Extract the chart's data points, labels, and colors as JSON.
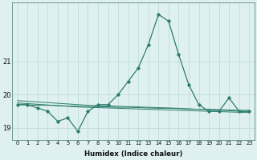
{
  "x": [
    0,
    1,
    2,
    3,
    4,
    5,
    6,
    7,
    8,
    9,
    10,
    11,
    12,
    13,
    14,
    15,
    16,
    17,
    18,
    19,
    20,
    21,
    22,
    23
  ],
  "y_main": [
    19.7,
    19.7,
    19.6,
    19.5,
    19.2,
    19.3,
    18.9,
    19.5,
    19.7,
    19.7,
    20.0,
    20.4,
    20.8,
    21.5,
    22.4,
    22.2,
    21.2,
    20.3,
    19.7,
    19.5,
    19.5,
    19.9,
    19.5,
    19.5
  ],
  "y_trend1": [
    19.75,
    19.73,
    19.71,
    19.69,
    19.67,
    19.65,
    19.63,
    19.62,
    19.61,
    19.6,
    19.59,
    19.58,
    19.57,
    19.56,
    19.55,
    19.54,
    19.53,
    19.52,
    19.51,
    19.5,
    19.49,
    19.48,
    19.47,
    19.46
  ],
  "y_trend2": [
    19.82,
    19.8,
    19.78,
    19.76,
    19.74,
    19.72,
    19.7,
    19.68,
    19.67,
    19.66,
    19.65,
    19.64,
    19.63,
    19.62,
    19.61,
    19.6,
    19.59,
    19.57,
    19.56,
    19.55,
    19.53,
    19.52,
    19.5,
    19.48
  ],
  "y_trend3": [
    19.7,
    19.69,
    19.68,
    19.68,
    19.67,
    19.66,
    19.65,
    19.64,
    19.64,
    19.63,
    19.62,
    19.62,
    19.61,
    19.6,
    19.59,
    19.59,
    19.58,
    19.57,
    19.56,
    19.56,
    19.55,
    19.54,
    19.53,
    19.53
  ],
  "line_color": "#2e7d6e",
  "bg_color": "#dff0f0",
  "grid_color": "#b8d8d8",
  "xlabel": "Humidex (Indice chaleur)",
  "yticks": [
    19,
    20,
    21
  ],
  "ylim": [
    18.65,
    22.75
  ],
  "xlim": [
    -0.5,
    23.5
  ]
}
